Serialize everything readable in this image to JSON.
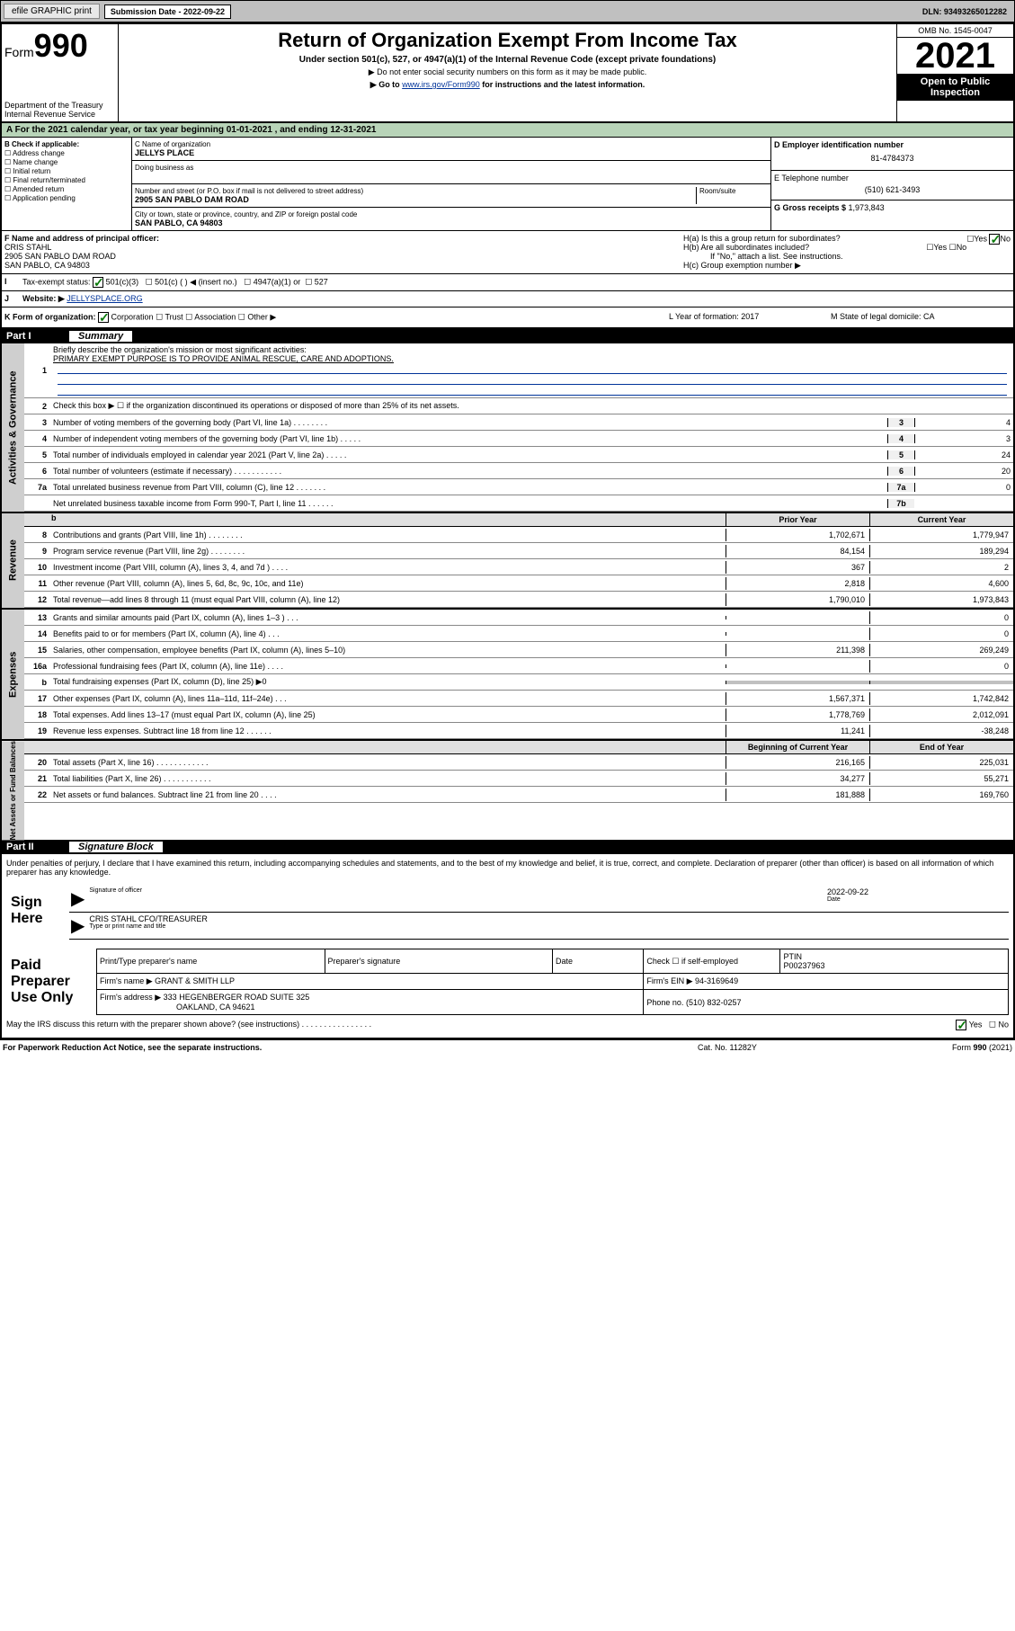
{
  "toolbar": {
    "efile": "efile GRAPHIC print",
    "subdate_label": "Submission Date - ",
    "subdate": "2022-09-22",
    "dln": "DLN: 93493265012282"
  },
  "header": {
    "form_prefix": "Form",
    "form_num": "990",
    "dept": "Department of the Treasury\nInternal Revenue Service",
    "title": "Return of Organization Exempt From Income Tax",
    "subtitle": "Under section 501(c), 527, or 4947(a)(1) of the Internal Revenue Code (except private foundations)",
    "note1": "▶ Do not enter social security numbers on this form as it may be made public.",
    "note2_pre": "▶ Go to ",
    "note2_link": "www.irs.gov/Form990",
    "note2_post": " for instructions and the latest information.",
    "omb": "OMB No. 1545-0047",
    "year": "2021",
    "open": "Open to Public Inspection"
  },
  "period": "For the 2021 calendar year, or tax year beginning 01-01-2021    , and ending 12-31-2021",
  "sectionB": {
    "label": "B Check if applicable:",
    "items": [
      "Address change",
      "Name change",
      "Initial return",
      "Final return/terminated",
      "Amended return",
      "Application pending"
    ]
  },
  "sectionC": {
    "name_label": "C Name of organization",
    "name": "JELLYS PLACE",
    "dba_label": "Doing business as",
    "addr_label": "Number and street (or P.O. box if mail is not delivered to street address)",
    "room_label": "Room/suite",
    "addr": "2905 SAN PABLO DAM ROAD",
    "city_label": "City or town, state or province, country, and ZIP or foreign postal code",
    "city": "SAN PABLO, CA  94803"
  },
  "sectionD": {
    "ein_label": "D Employer identification number",
    "ein": "81-4784373",
    "phone_label": "E Telephone number",
    "phone": "(510) 621-3493",
    "gross_label": "G Gross receipts $ ",
    "gross": "1,973,843"
  },
  "sectionF": {
    "label": "F Name and address of principal officer:",
    "name": "CRIS STAHL",
    "addr1": "2905 SAN PABLO DAM ROAD",
    "addr2": "SAN PABLO, CA  94803"
  },
  "sectionH": {
    "ha": "H(a)  Is this a group return for subordinates?",
    "hb": "H(b)  Are all subordinates included?",
    "hb_note": "If \"No,\" attach a list. See instructions.",
    "hc": "H(c)  Group exemption number ▶",
    "yes": "Yes",
    "no": "No"
  },
  "sectionI": {
    "label": "Tax-exempt status:",
    "opt1": "501(c)(3)",
    "opt2": "501(c) (   ) ◀ (insert no.)",
    "opt3": "4947(a)(1) or",
    "opt4": "527"
  },
  "sectionJ": {
    "label": "Website: ▶",
    "val": "JELLYSPLACE.ORG"
  },
  "sectionK": {
    "label": "K Form of organization:",
    "opts": [
      "Corporation",
      "Trust",
      "Association",
      "Other ▶"
    ],
    "l": "L Year of formation: 2017",
    "m": "M State of legal domicile: CA"
  },
  "part1": {
    "header": "Part I",
    "title": "Summary",
    "tabs": [
      "Activities & Governance",
      "Revenue",
      "Expenses",
      "Net Assets or Fund Balances"
    ],
    "line1": "Briefly describe the organization's mission or most significant activities:",
    "mission": "PRIMARY EXEMPT PURPOSE IS TO PROVIDE ANIMAL RESCUE, CARE AND ADOPTIONS.",
    "line2": "Check this box ▶ ☐  if the organization discontinued its operations or disposed of more than 25% of its net assets.",
    "gov_lines": [
      {
        "n": "3",
        "t": "Number of voting members of the governing body (Part VI, line 1a)   .   .   .   .   .   .   .   .",
        "b": "3",
        "v": "4"
      },
      {
        "n": "4",
        "t": "Number of independent voting members of the governing body (Part VI, line 1b)   .   .   .   .   .",
        "b": "4",
        "v": "3"
      },
      {
        "n": "5",
        "t": "Total number of individuals employed in calendar year 2021 (Part V, line 2a)   .   .   .   .   .",
        "b": "5",
        "v": "24"
      },
      {
        "n": "6",
        "t": "Total number of volunteers (estimate if necessary)   .   .   .   .   .   .   .   .   .   .   .",
        "b": "6",
        "v": "20"
      },
      {
        "n": "7a",
        "t": "Total unrelated business revenue from Part VIII, column (C), line 12   .   .   .   .   .   .   .",
        "b": "7a",
        "v": "0"
      },
      {
        "n": "",
        "t": "Net unrelated business taxable income from Form 990-T, Part I, line 11   .   .   .   .   .   .",
        "b": "7b",
        "v": ""
      }
    ],
    "col_prior": "Prior Year",
    "col_curr": "Current Year",
    "rev_lines": [
      {
        "n": "8",
        "t": "Contributions and grants (Part VIII, line 1h)   .   .   .   .   .   .   .   .",
        "p": "1,702,671",
        "c": "1,779,947"
      },
      {
        "n": "9",
        "t": "Program service revenue (Part VIII, line 2g)   .   .   .   .   .   .   .   .",
        "p": "84,154",
        "c": "189,294"
      },
      {
        "n": "10",
        "t": "Investment income (Part VIII, column (A), lines 3, 4, and 7d )   .   .   .   .",
        "p": "367",
        "c": "2"
      },
      {
        "n": "11",
        "t": "Other revenue (Part VIII, column (A), lines 5, 6d, 8c, 9c, 10c, and 11e)",
        "p": "2,818",
        "c": "4,600"
      },
      {
        "n": "12",
        "t": "Total revenue—add lines 8 through 11 (must equal Part VIII, column (A), line 12)",
        "p": "1,790,010",
        "c": "1,973,843"
      }
    ],
    "exp_lines": [
      {
        "n": "13",
        "t": "Grants and similar amounts paid (Part IX, column (A), lines 1–3 )   .   .   .",
        "p": "",
        "c": "0"
      },
      {
        "n": "14",
        "t": "Benefits paid to or for members (Part IX, column (A), line 4)   .   .   .",
        "p": "",
        "c": "0"
      },
      {
        "n": "15",
        "t": "Salaries, other compensation, employee benefits (Part IX, column (A), lines 5–10)",
        "p": "211,398",
        "c": "269,249"
      },
      {
        "n": "16a",
        "t": "Professional fundraising fees (Part IX, column (A), line 11e)   .   .   .   .",
        "p": "",
        "c": "0"
      },
      {
        "n": "b",
        "t": "Total fundraising expenses (Part IX, column (D), line 25) ▶0",
        "p": "shaded",
        "c": "shaded"
      },
      {
        "n": "17",
        "t": "Other expenses (Part IX, column (A), lines 11a–11d, 11f–24e)   .   .   .",
        "p": "1,567,371",
        "c": "1,742,842"
      },
      {
        "n": "18",
        "t": "Total expenses. Add lines 13–17 (must equal Part IX, column (A), line 25)",
        "p": "1,778,769",
        "c": "2,012,091"
      },
      {
        "n": "19",
        "t": "Revenue less expenses. Subtract line 18 from line 12   .   .   .   .   .   .",
        "p": "11,241",
        "c": "-38,248"
      }
    ],
    "col_begin": "Beginning of Current Year",
    "col_end": "End of Year",
    "net_lines": [
      {
        "n": "20",
        "t": "Total assets (Part X, line 16)   .   .   .   .   .   .   .   .   .   .   .   .",
        "p": "216,165",
        "c": "225,031"
      },
      {
        "n": "21",
        "t": "Total liabilities (Part X, line 26)   .   .   .   .   .   .   .   .   .   .   .",
        "p": "34,277",
        "c": "55,271"
      },
      {
        "n": "22",
        "t": "Net assets or fund balances. Subtract line 21 from line 20   .   .   .   .",
        "p": "181,888",
        "c": "169,760"
      }
    ]
  },
  "part2": {
    "header": "Part II",
    "title": "Signature Block",
    "decl": "Under penalties of perjury, I declare that I have examined this return, including accompanying schedules and statements, and to the best of my knowledge and belief, it is true, correct, and complete. Declaration of preparer (other than officer) is based on all information of which preparer has any knowledge.",
    "sign_label": "Sign Here",
    "sig_officer": "Signature of officer",
    "date_label": "Date",
    "sig_date": "2022-09-22",
    "officer_name": "CRIS STAHL CFO/TREASURER",
    "name_title": "Type or print name and title",
    "paid_label": "Paid Preparer Use Only",
    "prep_name": "Print/Type preparer's name",
    "prep_sig": "Preparer's signature",
    "check_self": "Check ☐ if self-employed",
    "ptin_label": "PTIN",
    "ptin": "P00237963",
    "firm_name_label": "Firm's name    ▶",
    "firm_name": "GRANT & SMITH LLP",
    "firm_ein_label": "Firm's EIN ▶",
    "firm_ein": "94-3169649",
    "firm_addr_label": "Firm's address ▶",
    "firm_addr1": "333 HEGENBERGER ROAD SUITE 325",
    "firm_addr2": "OAKLAND, CA  94621",
    "phone_label": "Phone no.",
    "phone": "(510) 832-0257",
    "discuss": "May the IRS discuss this return with the preparer shown above? (see instructions)   .   .   .   .   .   .   .   .   .   .   .   .   .   .   .   .",
    "yes": "Yes",
    "no": "No"
  },
  "footer": {
    "left": "For Paperwork Reduction Act Notice, see the separate instructions.",
    "mid": "Cat. No. 11282Y",
    "right": "Form 990 (2021)"
  }
}
